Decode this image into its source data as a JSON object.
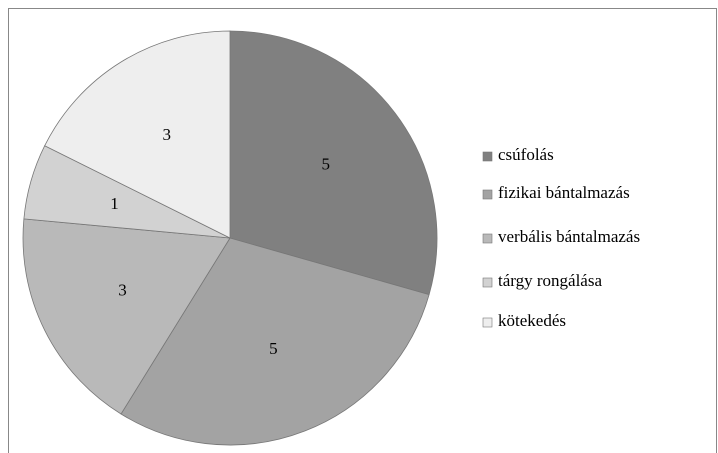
{
  "chart_data": {
    "type": "pie",
    "categories": [
      "csúfolás",
      "fizikai bántalmazás",
      "verbális bántalmazás",
      "tárgy rongálása",
      "kötekedés"
    ],
    "values": [
      5,
      5,
      3,
      1,
      3
    ],
    "colors": [
      "#808080",
      "#a3a3a3",
      "#b9b9b9",
      "#d2d2d2",
      "#eeeeee"
    ],
    "legend": "right"
  }
}
